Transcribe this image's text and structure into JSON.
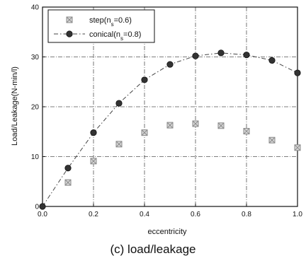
{
  "caption": "(c) load/leakage",
  "chart_data": {
    "type": "line",
    "xlabel": "eccentricity",
    "ylabel": "Load/Leakage(N-min/l)",
    "xlim": [
      0.0,
      1.0
    ],
    "ylim": [
      0,
      40
    ],
    "x_ticks": [
      0.0,
      0.2,
      0.4,
      0.6,
      0.8,
      1.0
    ],
    "x_tick_labels": [
      "0.0",
      "0.2",
      "0.4",
      "0.6",
      "0.8",
      "1.0"
    ],
    "y_ticks": [
      0,
      10,
      20,
      30,
      40
    ],
    "y_tick_labels": [
      "0",
      "10",
      "20",
      "30",
      "40"
    ],
    "grid": true,
    "legend_position": "top-left",
    "series": [
      {
        "name": "step(n_s=0.6)",
        "legend_label": {
          "base": "step(n",
          "sub": "s",
          "tail": "=0.6)"
        },
        "marker": "square-x",
        "line": "none",
        "color": "#8a8a8a",
        "x": [
          0.1,
          0.2,
          0.3,
          0.4,
          0.5,
          0.6,
          0.7,
          0.8,
          0.9,
          1.0
        ],
        "y": [
          4.8,
          9.1,
          12.5,
          14.8,
          16.3,
          16.6,
          16.2,
          15.1,
          13.3,
          11.8
        ]
      },
      {
        "name": "conical(n_s=0.8)",
        "legend_label": {
          "base": "conical(n",
          "sub": "s",
          "tail": "=0.8)"
        },
        "marker": "circle",
        "line": "dash-dot",
        "color": "#333333",
        "x": [
          0.0,
          0.1,
          0.2,
          0.3,
          0.4,
          0.5,
          0.6,
          0.7,
          0.8,
          0.9,
          1.0
        ],
        "y": [
          0,
          7.7,
          14.8,
          20.7,
          25.4,
          28.5,
          30.2,
          30.8,
          30.4,
          29.3,
          26.8
        ]
      }
    ]
  }
}
